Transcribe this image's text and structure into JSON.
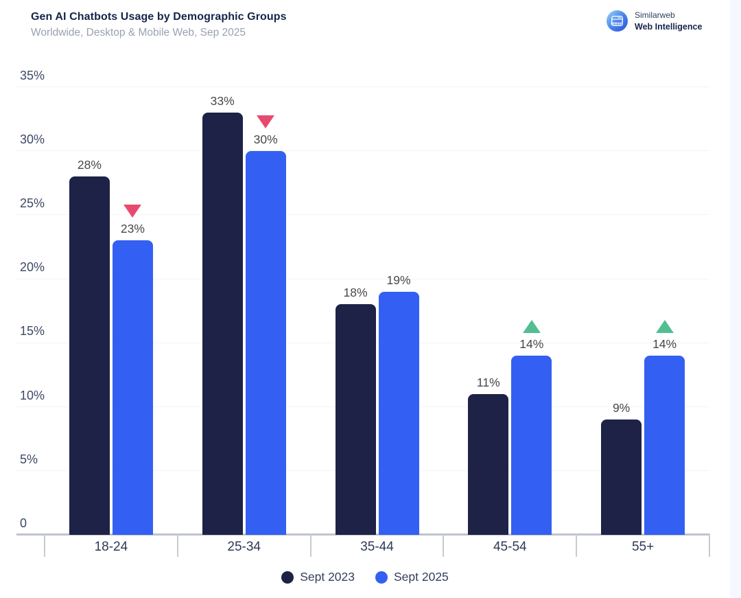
{
  "header": {
    "title": "Gen AI Chatbots Usage by Demographic Groups",
    "subtitle": "Worldwide, Desktop & Mobile Web, Sep 2025"
  },
  "logo": {
    "brand": "Similarweb",
    "product": "Web Intelligence",
    "icon": "similarweb-browser-globe-icon",
    "icon_text": "www"
  },
  "chart_data": {
    "type": "bar",
    "title": "Gen AI Chatbots Usage by Demographic Groups",
    "subtitle": "Worldwide, Desktop & Mobile Web, Sep 2025",
    "categories": [
      "18-24",
      "25-34",
      "35-44",
      "45-54",
      "55+"
    ],
    "series": [
      {
        "name": "Sept 2023",
        "color": "#1e2247",
        "values": [
          28,
          33,
          18,
          11,
          9
        ]
      },
      {
        "name": "Sept 2025",
        "color": "#3360f3",
        "values": [
          23,
          30,
          19,
          14,
          14
        ]
      }
    ],
    "value_suffix": "%",
    "indicators": [
      "down",
      "down",
      null,
      "up",
      "up"
    ],
    "indicator_colors": {
      "down": "#e84a6f",
      "up": "#52be91"
    },
    "yticks": [
      0,
      5,
      10,
      15,
      20,
      25,
      30,
      35
    ],
    "ytick_labels": [
      "0",
      "5%",
      "10%",
      "15%",
      "20%",
      "25%",
      "30%",
      "35%"
    ],
    "ylim": [
      0,
      35
    ],
    "grid": true,
    "legend_position": "bottom",
    "background_color": "#ffffff",
    "page_strip_color": "#f5f8fe"
  }
}
